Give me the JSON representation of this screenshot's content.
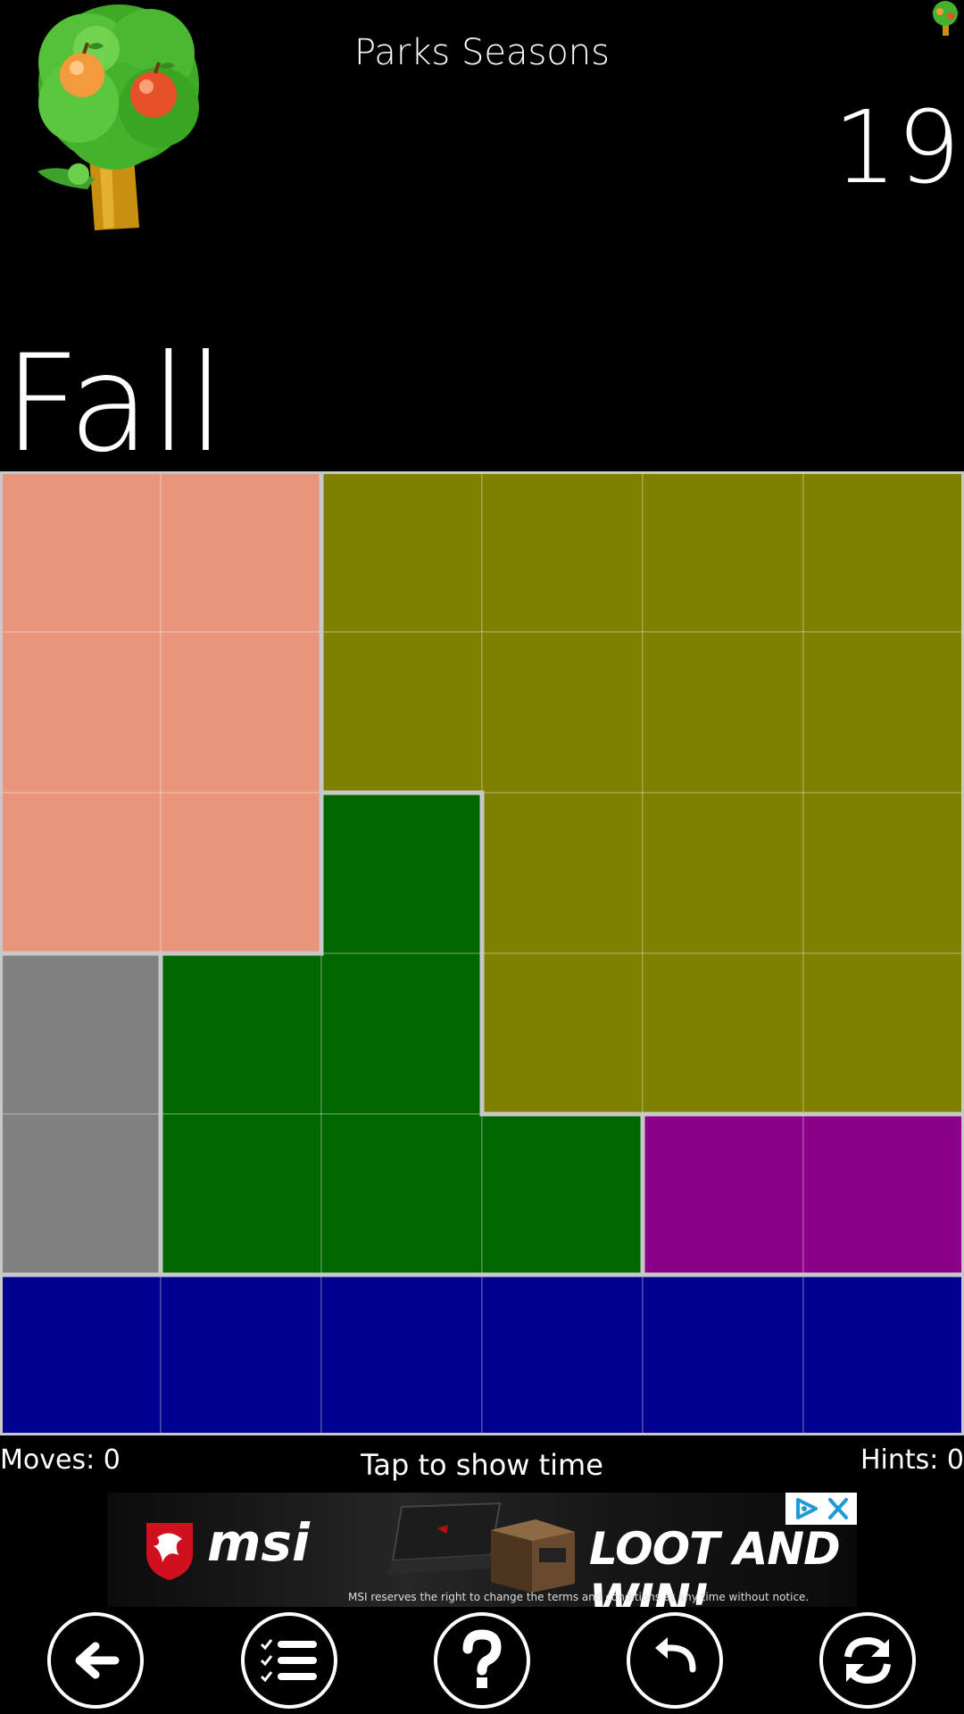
{
  "header": {
    "title": "Parks Seasons",
    "level": "19",
    "season": "Fall"
  },
  "board": {
    "columns": 6,
    "rows": 6,
    "regions": [
      {
        "name": "salmon",
        "color": "#e9957b",
        "cells": [
          [
            0,
            0
          ],
          [
            0,
            1
          ],
          [
            1,
            0
          ],
          [
            1,
            1
          ],
          [
            2,
            0
          ],
          [
            2,
            1
          ]
        ]
      },
      {
        "name": "olive",
        "color": "#7f7f00",
        "cells": [
          [
            0,
            2
          ],
          [
            0,
            3
          ],
          [
            0,
            4
          ],
          [
            0,
            5
          ],
          [
            1,
            2
          ],
          [
            1,
            3
          ],
          [
            1,
            4
          ],
          [
            1,
            5
          ],
          [
            2,
            3
          ],
          [
            2,
            4
          ],
          [
            2,
            5
          ],
          [
            3,
            3
          ],
          [
            3,
            4
          ],
          [
            3,
            5
          ]
        ]
      },
      {
        "name": "green",
        "color": "#006600",
        "cells": [
          [
            2,
            2
          ],
          [
            3,
            1
          ],
          [
            3,
            2
          ],
          [
            4,
            1
          ],
          [
            4,
            2
          ],
          [
            4,
            3
          ]
        ]
      },
      {
        "name": "gray",
        "color": "#808080",
        "cells": [
          [
            3,
            0
          ],
          [
            4,
            0
          ]
        ]
      },
      {
        "name": "purple",
        "color": "#8b008b",
        "cells": [
          [
            4,
            4
          ],
          [
            4,
            5
          ]
        ]
      },
      {
        "name": "navy",
        "color": "#000090",
        "cells": [
          [
            5,
            0
          ],
          [
            5,
            1
          ],
          [
            5,
            2
          ],
          [
            5,
            3
          ],
          [
            5,
            4
          ],
          [
            5,
            5
          ]
        ]
      }
    ]
  },
  "status": {
    "moves": "Moves: 0",
    "tap": "Tap to show time",
    "hints": "Hints: 0"
  },
  "ad": {
    "brand": "msi",
    "slogan": "LOOT AND WIN!",
    "disclaimer": "MSI reserves the right to change the terms and conditions at any time without notice."
  },
  "nav": [
    {
      "name": "back-button",
      "icon": "arrow-left-icon"
    },
    {
      "name": "level-list-button",
      "icon": "checklist-icon"
    },
    {
      "name": "help-button",
      "icon": "question-icon"
    },
    {
      "name": "undo-button",
      "icon": "undo-icon"
    },
    {
      "name": "restart-button",
      "icon": "refresh-icon"
    }
  ]
}
